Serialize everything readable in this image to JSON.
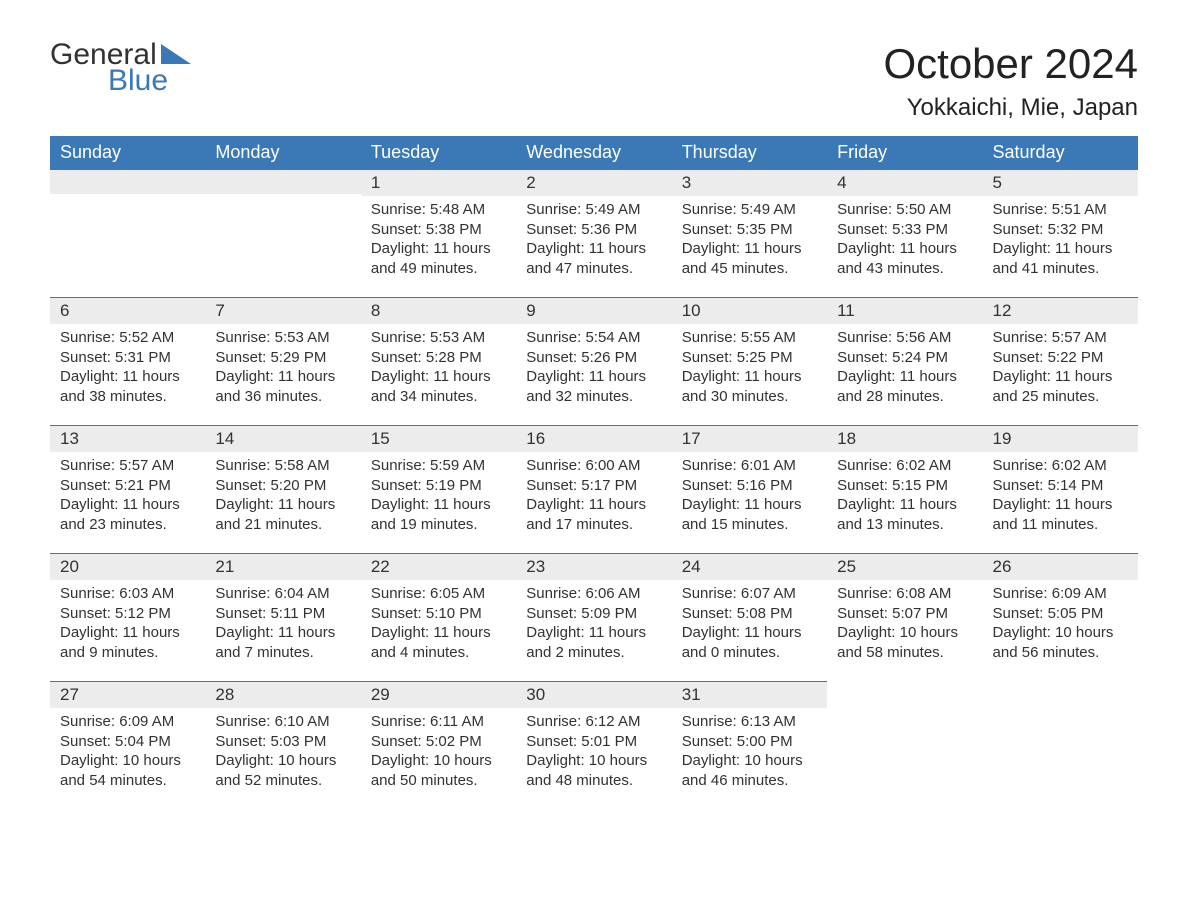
{
  "logo": {
    "top": "General",
    "bottom": "Blue",
    "flag_color": "#3b78b6"
  },
  "header": {
    "month_title": "October 2024",
    "location": "Yokkaichi, Mie, Japan"
  },
  "colors": {
    "header_bg": "#3b78b6",
    "header_text": "#ffffff",
    "daynum_bg": "#ececec",
    "daynum_border": "#3b78b6",
    "body_text": "#323232",
    "page_bg": "#ffffff"
  },
  "weekdays": [
    "Sunday",
    "Monday",
    "Tuesday",
    "Wednesday",
    "Thursday",
    "Friday",
    "Saturday"
  ],
  "grid": [
    [
      null,
      null,
      {
        "day": "1",
        "sunrise": "Sunrise: 5:48 AM",
        "sunset": "Sunset: 5:38 PM",
        "d1": "Daylight: 11 hours",
        "d2": "and 49 minutes."
      },
      {
        "day": "2",
        "sunrise": "Sunrise: 5:49 AM",
        "sunset": "Sunset: 5:36 PM",
        "d1": "Daylight: 11 hours",
        "d2": "and 47 minutes."
      },
      {
        "day": "3",
        "sunrise": "Sunrise: 5:49 AM",
        "sunset": "Sunset: 5:35 PM",
        "d1": "Daylight: 11 hours",
        "d2": "and 45 minutes."
      },
      {
        "day": "4",
        "sunrise": "Sunrise: 5:50 AM",
        "sunset": "Sunset: 5:33 PM",
        "d1": "Daylight: 11 hours",
        "d2": "and 43 minutes."
      },
      {
        "day": "5",
        "sunrise": "Sunrise: 5:51 AM",
        "sunset": "Sunset: 5:32 PM",
        "d1": "Daylight: 11 hours",
        "d2": "and 41 minutes."
      }
    ],
    [
      {
        "day": "6",
        "sunrise": "Sunrise: 5:52 AM",
        "sunset": "Sunset: 5:31 PM",
        "d1": "Daylight: 11 hours",
        "d2": "and 38 minutes."
      },
      {
        "day": "7",
        "sunrise": "Sunrise: 5:53 AM",
        "sunset": "Sunset: 5:29 PM",
        "d1": "Daylight: 11 hours",
        "d2": "and 36 minutes."
      },
      {
        "day": "8",
        "sunrise": "Sunrise: 5:53 AM",
        "sunset": "Sunset: 5:28 PM",
        "d1": "Daylight: 11 hours",
        "d2": "and 34 minutes."
      },
      {
        "day": "9",
        "sunrise": "Sunrise: 5:54 AM",
        "sunset": "Sunset: 5:26 PM",
        "d1": "Daylight: 11 hours",
        "d2": "and 32 minutes."
      },
      {
        "day": "10",
        "sunrise": "Sunrise: 5:55 AM",
        "sunset": "Sunset: 5:25 PM",
        "d1": "Daylight: 11 hours",
        "d2": "and 30 minutes."
      },
      {
        "day": "11",
        "sunrise": "Sunrise: 5:56 AM",
        "sunset": "Sunset: 5:24 PM",
        "d1": "Daylight: 11 hours",
        "d2": "and 28 minutes."
      },
      {
        "day": "12",
        "sunrise": "Sunrise: 5:57 AM",
        "sunset": "Sunset: 5:22 PM",
        "d1": "Daylight: 11 hours",
        "d2": "and 25 minutes."
      }
    ],
    [
      {
        "day": "13",
        "sunrise": "Sunrise: 5:57 AM",
        "sunset": "Sunset: 5:21 PM",
        "d1": "Daylight: 11 hours",
        "d2": "and 23 minutes."
      },
      {
        "day": "14",
        "sunrise": "Sunrise: 5:58 AM",
        "sunset": "Sunset: 5:20 PM",
        "d1": "Daylight: 11 hours",
        "d2": "and 21 minutes."
      },
      {
        "day": "15",
        "sunrise": "Sunrise: 5:59 AM",
        "sunset": "Sunset: 5:19 PM",
        "d1": "Daylight: 11 hours",
        "d2": "and 19 minutes."
      },
      {
        "day": "16",
        "sunrise": "Sunrise: 6:00 AM",
        "sunset": "Sunset: 5:17 PM",
        "d1": "Daylight: 11 hours",
        "d2": "and 17 minutes."
      },
      {
        "day": "17",
        "sunrise": "Sunrise: 6:01 AM",
        "sunset": "Sunset: 5:16 PM",
        "d1": "Daylight: 11 hours",
        "d2": "and 15 minutes."
      },
      {
        "day": "18",
        "sunrise": "Sunrise: 6:02 AM",
        "sunset": "Sunset: 5:15 PM",
        "d1": "Daylight: 11 hours",
        "d2": "and 13 minutes."
      },
      {
        "day": "19",
        "sunrise": "Sunrise: 6:02 AM",
        "sunset": "Sunset: 5:14 PM",
        "d1": "Daylight: 11 hours",
        "d2": "and 11 minutes."
      }
    ],
    [
      {
        "day": "20",
        "sunrise": "Sunrise: 6:03 AM",
        "sunset": "Sunset: 5:12 PM",
        "d1": "Daylight: 11 hours",
        "d2": "and 9 minutes."
      },
      {
        "day": "21",
        "sunrise": "Sunrise: 6:04 AM",
        "sunset": "Sunset: 5:11 PM",
        "d1": "Daylight: 11 hours",
        "d2": "and 7 minutes."
      },
      {
        "day": "22",
        "sunrise": "Sunrise: 6:05 AM",
        "sunset": "Sunset: 5:10 PM",
        "d1": "Daylight: 11 hours",
        "d2": "and 4 minutes."
      },
      {
        "day": "23",
        "sunrise": "Sunrise: 6:06 AM",
        "sunset": "Sunset: 5:09 PM",
        "d1": "Daylight: 11 hours",
        "d2": "and 2 minutes."
      },
      {
        "day": "24",
        "sunrise": "Sunrise: 6:07 AM",
        "sunset": "Sunset: 5:08 PM",
        "d1": "Daylight: 11 hours",
        "d2": "and 0 minutes."
      },
      {
        "day": "25",
        "sunrise": "Sunrise: 6:08 AM",
        "sunset": "Sunset: 5:07 PM",
        "d1": "Daylight: 10 hours",
        "d2": "and 58 minutes."
      },
      {
        "day": "26",
        "sunrise": "Sunrise: 6:09 AM",
        "sunset": "Sunset: 5:05 PM",
        "d1": "Daylight: 10 hours",
        "d2": "and 56 minutes."
      }
    ],
    [
      {
        "day": "27",
        "sunrise": "Sunrise: 6:09 AM",
        "sunset": "Sunset: 5:04 PM",
        "d1": "Daylight: 10 hours",
        "d2": "and 54 minutes."
      },
      {
        "day": "28",
        "sunrise": "Sunrise: 6:10 AM",
        "sunset": "Sunset: 5:03 PM",
        "d1": "Daylight: 10 hours",
        "d2": "and 52 minutes."
      },
      {
        "day": "29",
        "sunrise": "Sunrise: 6:11 AM",
        "sunset": "Sunset: 5:02 PM",
        "d1": "Daylight: 10 hours",
        "d2": "and 50 minutes."
      },
      {
        "day": "30",
        "sunrise": "Sunrise: 6:12 AM",
        "sunset": "Sunset: 5:01 PM",
        "d1": "Daylight: 10 hours",
        "d2": "and 48 minutes."
      },
      {
        "day": "31",
        "sunrise": "Sunrise: 6:13 AM",
        "sunset": "Sunset: 5:00 PM",
        "d1": "Daylight: 10 hours",
        "d2": "and 46 minutes."
      },
      null,
      null
    ]
  ]
}
